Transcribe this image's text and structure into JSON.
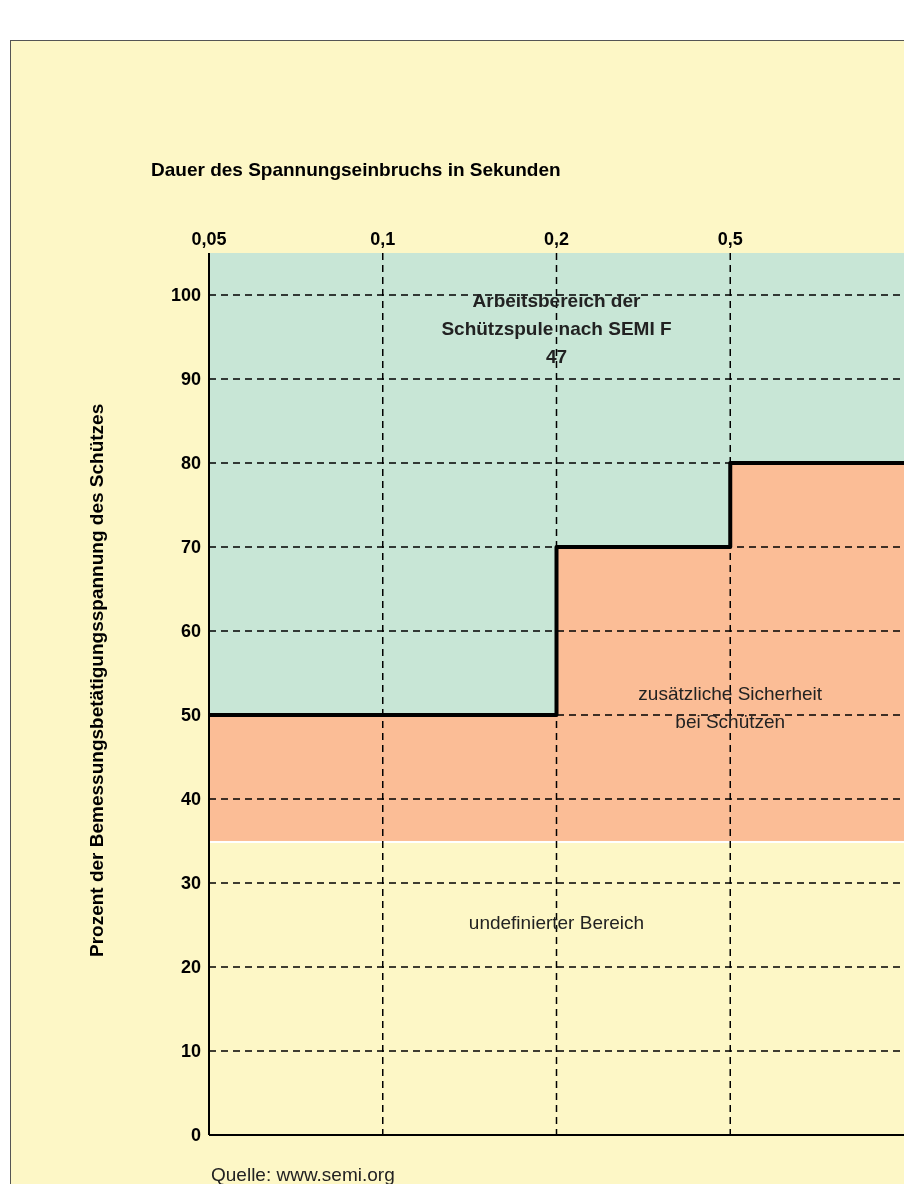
{
  "chart_data": {
    "type": "step",
    "xlabel": "Dauer des Spannungseinbruchs in Sekunden",
    "ylabel": "Prozent der Bemessungsbetätigungsspannung des Schützes",
    "categories": [
      "0,05",
      "0,1",
      "0,2",
      "0,5",
      null
    ],
    "series": [
      {
        "type": "area",
        "color": "#fdf7c6",
        "values": [
          35,
          35,
          35,
          35,
          35
        ]
      },
      {
        "type": "area",
        "color": "#fbbd96",
        "values": [
          15,
          15,
          35,
          45,
          45
        ]
      },
      {
        "type": "area",
        "color": "#c8e6d6",
        "values": [
          55,
          55,
          35,
          25,
          25
        ]
      },
      {
        "type": "step",
        "color": "#000000",
        "values": [
          50,
          50,
          70,
          80,
          80
        ]
      }
    ],
    "stacked": true,
    "ylim": [
      0,
      105
    ],
    "yticks": [
      0,
      10,
      20,
      30,
      40,
      50,
      60,
      70,
      80,
      90,
      100
    ],
    "grid": true,
    "annotations": [
      "Arbeitsbereich der Schützspule nach SEMI F 47",
      "zusätzliche Sicherheit bei Schützen",
      "undefinierter Bereich",
      "Quelle: www.semi.org"
    ]
  }
}
